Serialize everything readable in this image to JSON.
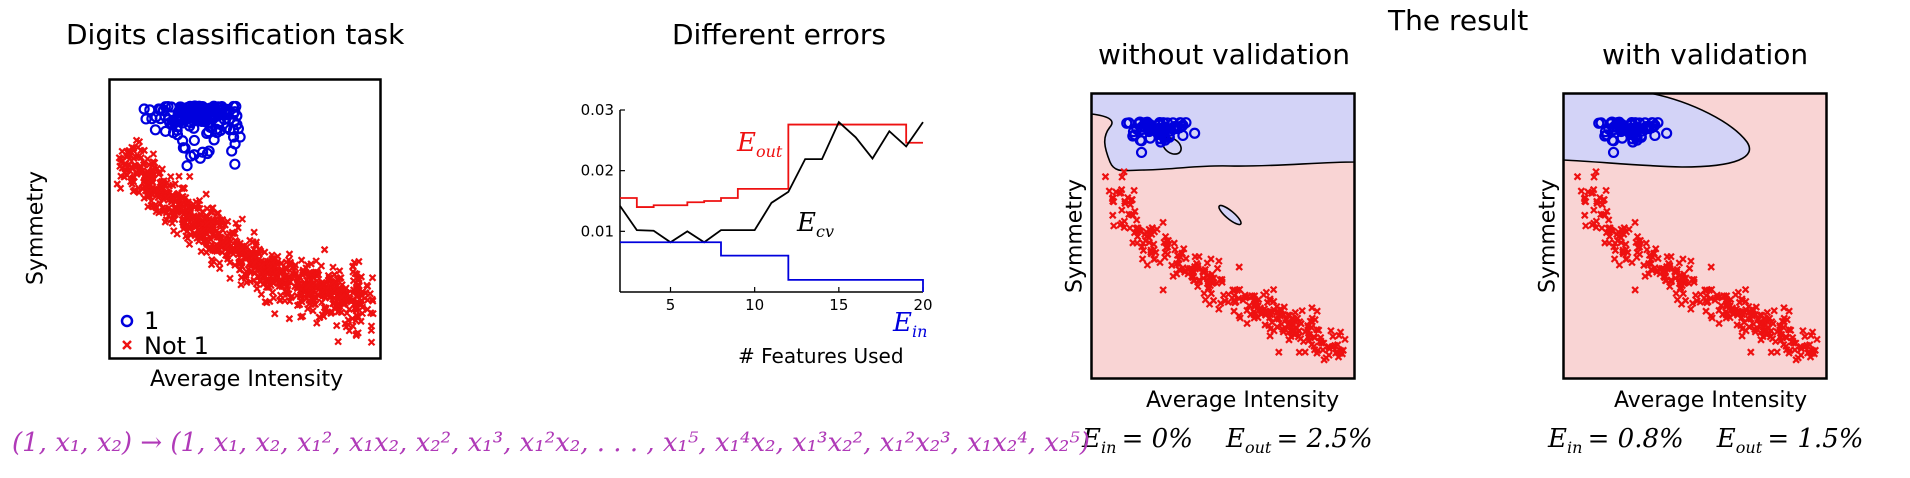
{
  "colors": {
    "blue": "#0000dd",
    "red": "#ee1111",
    "blue_region": "#d3d3f7",
    "red_region": "#f9d4d4",
    "formula": "#b03ab8"
  },
  "panel1": {
    "title": "Digits classification task",
    "xlabel": "Average Intensity",
    "ylabel": "Symmetry",
    "legend": [
      {
        "marker": "o",
        "label": "1"
      },
      {
        "marker": "x",
        "label": "Not 1"
      }
    ]
  },
  "panel2": {
    "title": "Different errors",
    "xlabel": "# Features Used",
    "labels": {
      "eout": "E",
      "eout_sub": "out",
      "ecv": "E",
      "ecv_sub": "cv",
      "ein": "E",
      "ein_sub": "in"
    }
  },
  "result_title": "The result",
  "panel3": {
    "title": "without validation",
    "xlabel": "Average Intensity",
    "ylabel": "Symmetry",
    "ein": "= 0%",
    "eout": "= 2.5%"
  },
  "panel4": {
    "title": "with validation",
    "xlabel": "Average Intensity",
    "ylabel": "Symmetry",
    "ein": "= 0.8%",
    "eout": "= 1.5%"
  },
  "formula": {
    "lhs": "(1, x₁, x₂)",
    "arrow": "→",
    "rhs": "(1, x₁, x₂, x₁², x₁x₂, x₂², x₁³, x₁²x₂, . . . , x₁⁵, x₁⁴x₂, x₁³x₂², x₁²x₂³, x₁x₂⁴, x₂⁵)"
  },
  "chart_data": [
    {
      "type": "scatter",
      "title": "Digits classification task",
      "xlabel": "Average Intensity",
      "ylabel": "Symmetry",
      "series": [
        {
          "name": "1",
          "marker": "o"
        },
        {
          "name": "Not 1",
          "marker": "x"
        }
      ]
    },
    {
      "type": "line",
      "title": "Different errors",
      "xlabel": "# Features Used",
      "ylabel": "",
      "x_ticks": [
        5,
        10,
        15,
        20
      ],
      "y_ticks": [
        0.01,
        0.02,
        0.03
      ],
      "y_tick_labels": [
        "0.01",
        "0.02",
        "0.03"
      ],
      "xlim": [
        2,
        20
      ],
      "ylim": [
        0,
        0.03
      ],
      "series": [
        {
          "name": "Eout",
          "color": "#ee1111",
          "x": [
            2,
            3,
            4,
            5,
            6,
            7,
            8,
            9,
            10,
            11,
            12,
            13,
            14,
            15,
            16,
            17,
            18,
            19,
            20
          ],
          "y": [
            0.0155,
            0.014,
            0.0143,
            0.0143,
            0.0148,
            0.015,
            0.0155,
            0.017,
            0.017,
            0.017,
            0.0276,
            0.0276,
            0.0276,
            0.0276,
            0.0276,
            0.0276,
            0.0276,
            0.0246,
            0.0246
          ]
        },
        {
          "name": "Ecv",
          "color": "#000000",
          "x": [
            2,
            3,
            4,
            5,
            6,
            7,
            8,
            9,
            10,
            11,
            12,
            13,
            14,
            15,
            16,
            17,
            18,
            19,
            20
          ],
          "y": [
            0.0142,
            0.0102,
            0.0101,
            0.0082,
            0.01,
            0.0082,
            0.0102,
            0.0102,
            0.0102,
            0.0147,
            0.0165,
            0.0219,
            0.0219,
            0.028,
            0.0255,
            0.022,
            0.0265,
            0.024,
            0.028
          ]
        },
        {
          "name": "Ein",
          "color": "#0000dd",
          "x": [
            2,
            3,
            4,
            5,
            6,
            7,
            8,
            9,
            10,
            11,
            12,
            13,
            14,
            15,
            16,
            17,
            18,
            19,
            20
          ],
          "y": [
            0.0082,
            0.0082,
            0.0082,
            0.0082,
            0.0082,
            0.0082,
            0.006,
            0.006,
            0.006,
            0.006,
            0.002,
            0.002,
            0.002,
            0.002,
            0.002,
            0.002,
            0.002,
            0.002,
            0.0
          ]
        }
      ]
    },
    {
      "type": "scatter",
      "title": "without validation",
      "xlabel": "Average Intensity",
      "ylabel": "Symmetry",
      "series": [
        {
          "name": "1",
          "marker": "o"
        },
        {
          "name": "Not 1",
          "marker": "x"
        }
      ]
    },
    {
      "type": "scatter",
      "title": "with validation",
      "xlabel": "Average Intensity",
      "ylabel": "Symmetry",
      "series": [
        {
          "name": "1",
          "marker": "o"
        },
        {
          "name": "Not 1",
          "marker": "x"
        }
      ]
    }
  ]
}
